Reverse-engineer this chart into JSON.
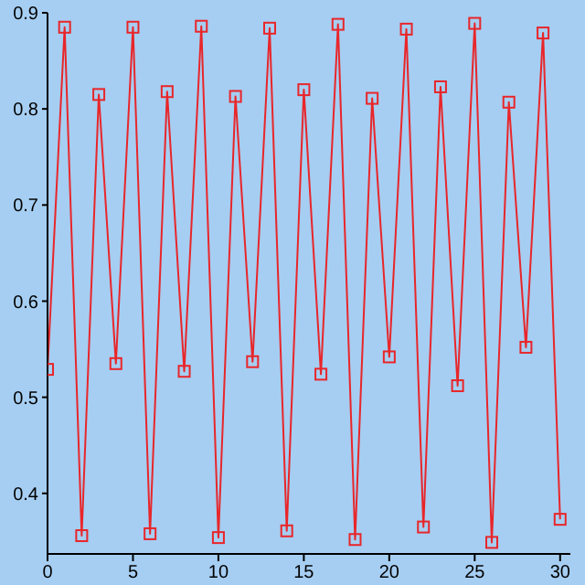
{
  "chart_data": {
    "type": "line",
    "x": [
      0,
      1,
      2,
      3,
      4,
      5,
      6,
      7,
      8,
      9,
      10,
      11,
      12,
      13,
      14,
      15,
      16,
      17,
      18,
      19,
      20,
      21,
      22,
      23,
      24,
      25,
      26,
      27,
      28,
      29,
      30
    ],
    "series": [
      {
        "color": "#e8262a",
        "values": [
          0.529,
          0.885,
          0.356,
          0.815,
          0.535,
          0.885,
          0.358,
          0.818,
          0.527,
          0.886,
          0.354,
          0.813,
          0.537,
          0.884,
          0.361,
          0.82,
          0.524,
          0.888,
          0.352,
          0.811,
          0.542,
          0.883,
          0.365,
          0.823,
          0.512,
          0.889,
          0.349,
          0.807,
          0.552,
          0.879,
          0.373
        ]
      }
    ],
    "xlim": [
      0,
      30.6
    ],
    "xticks": [
      0,
      5,
      10,
      15,
      20,
      25,
      30
    ],
    "ylim": [
      0.337,
      0.9
    ],
    "yticks": [
      0.4,
      0.5,
      0.6,
      0.7,
      0.8,
      0.9
    ],
    "grid": false,
    "legend": false,
    "marker": "square",
    "line_style": "solid"
  }
}
